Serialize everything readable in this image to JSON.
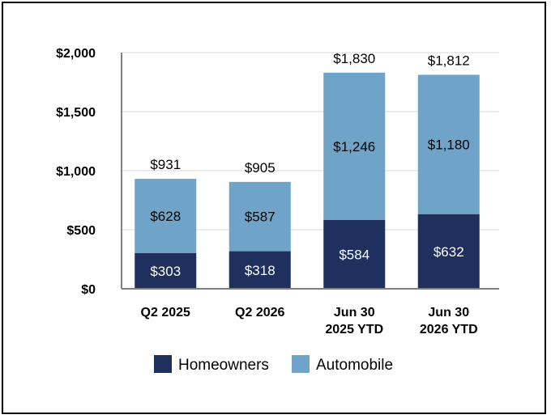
{
  "chart_data": {
    "type": "bar",
    "stacked": true,
    "categories": [
      [
        "Q2 2025"
      ],
      [
        "Q2 2026"
      ],
      [
        "Jun 30",
        "2025 YTD"
      ],
      [
        "Jun 30",
        "2026 YTD"
      ]
    ],
    "series": [
      {
        "name": "Homeowners",
        "values": [
          303,
          318,
          584,
          632
        ],
        "labels": [
          "$303",
          "$318",
          "$584",
          "$632"
        ],
        "color": "#1f2f5e"
      },
      {
        "name": "Automobile",
        "values": [
          628,
          587,
          1246,
          1180
        ],
        "labels": [
          "$628",
          "$587",
          "$1,246",
          "$1,180"
        ],
        "color": "#6fa3c7"
      }
    ],
    "totals": [
      931,
      905,
      1830,
      1812
    ],
    "total_labels": [
      "$931",
      "$905",
      "$1,830",
      "$1,812"
    ],
    "ylim": [
      0,
      2000
    ],
    "yticks": [
      0,
      500,
      1000,
      1500,
      2000
    ],
    "ytick_labels": [
      "$0",
      "$500",
      "$1,000",
      "$1,500",
      "$2,000"
    ],
    "grid": true,
    "grid_color": "#d9d9d9",
    "legend_position": "bottom"
  }
}
